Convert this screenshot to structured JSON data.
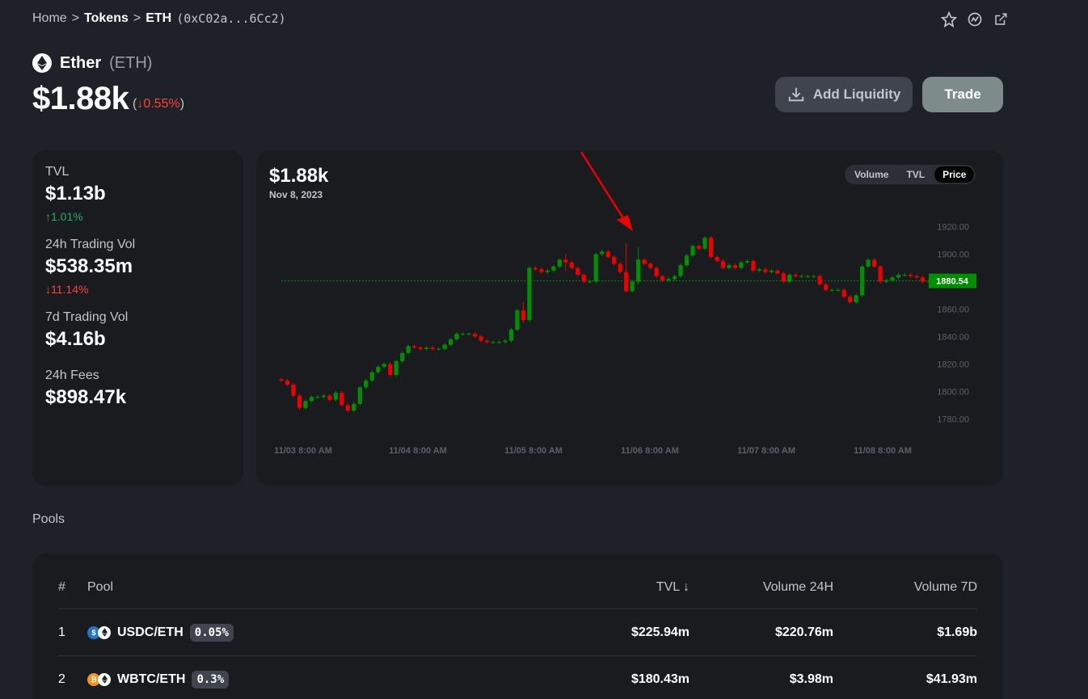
{
  "breadcrumb": {
    "home": "Home",
    "sep1": ">",
    "tokens": "Tokens",
    "sep2": ">",
    "token": "ETH",
    "address": "(0xC02a...6Cc2)"
  },
  "token": {
    "name": "Ether",
    "symbol": "(ETH)",
    "price": "$1.88k",
    "change_open": "(",
    "change_arrow": "↓",
    "change": "0.55%",
    "change_close": ")"
  },
  "actions": {
    "add_liquidity": "Add Liquidity",
    "trade": "Trade"
  },
  "stats": {
    "tvl": {
      "label": "TVL",
      "value": "$1.13b",
      "change": "↑1.01%",
      "direction": "up"
    },
    "vol24": {
      "label": "24h Trading Vol",
      "value": "$538.35m",
      "change": "↓11.14%",
      "direction": "down"
    },
    "vol7": {
      "label": "7d Trading Vol",
      "value": "$4.16b"
    },
    "fees24": {
      "label": "24h Fees",
      "value": "$898.47k"
    }
  },
  "chart_header": {
    "price": "$1.88k",
    "date": "Nov 8, 2023"
  },
  "toggle": {
    "volume": "Volume",
    "tvl": "TVL",
    "price": "Price",
    "active": "price"
  },
  "colors": {
    "up": "#008f00",
    "down": "#ee0000",
    "current_price_tag": "#008f00",
    "arrow": "#ee0000"
  },
  "chart_data": {
    "type": "candlestick",
    "y_ticks": [
      "1920.00",
      "1900.00",
      "1880.00",
      "1860.00",
      "1840.00",
      "1820.00",
      "1800.00",
      "1780.00"
    ],
    "ylim": [
      1772,
      1928
    ],
    "x_ticks": [
      "11/03 8:00 AM",
      "11/04 8:00 AM",
      "11/05 8:00 AM",
      "11/06 8:00 AM",
      "11/07 8:00 AM",
      "11/08 8:00 AM"
    ],
    "current_price": "1880.54",
    "current_price_value": 1880.54,
    "closes": [
      1808,
      1805,
      1797,
      1788,
      1793,
      1796,
      1796,
      1797,
      1794,
      1799,
      1790,
      1786,
      1791,
      1803,
      1808,
      1814,
      1818,
      1820,
      1812,
      1822,
      1828,
      1833,
      1832,
      1831,
      1832,
      1831,
      1831,
      1834,
      1838,
      1842,
      1842,
      1842,
      1840,
      1837,
      1836,
      1836,
      1836,
      1837,
      1845,
      1859,
      1852,
      1890,
      1889,
      1887,
      1888,
      1891,
      1896,
      1894,
      1890,
      1885,
      1880,
      1880,
      1900,
      1902,
      1898,
      1893,
      1887,
      1873,
      1880,
      1896,
      1893,
      1890,
      1884,
      1881,
      1882,
      1884,
      1892,
      1899,
      1906,
      1904,
      1912,
      1898,
      1895,
      1890,
      1892,
      1890,
      1894,
      1895,
      1888,
      1889,
      1887,
      1888,
      1886,
      1880,
      1885,
      1884,
      1884,
      1884,
      1884,
      1878,
      1874,
      1874,
      1874,
      1869,
      1865,
      1870,
      1891,
      1896,
      1891,
      1880,
      1881,
      1883,
      1885,
      1885,
      1884,
      1883,
      1880,
      1880.54
    ],
    "wick_overrides": {
      "40": [
        1850,
        1865
      ],
      "47": [
        1888,
        1900
      ],
      "57": [
        1872,
        1908
      ],
      "59": [
        1878,
        1905
      ]
    }
  },
  "pools": {
    "title": "Pools",
    "headers": {
      "num": "#",
      "pool": "Pool",
      "tvl": "TVL ↓",
      "vol24": "Volume 24H",
      "vol7": "Volume 7D"
    },
    "rows": [
      {
        "num": "1",
        "pair": "USDC/ETH",
        "fee": "0.05%",
        "tvl": "$225.94m",
        "vol24": "$220.76m",
        "vol7": "$1.69b"
      },
      {
        "num": "2",
        "pair": "WBTC/ETH",
        "fee": "0.3%",
        "tvl": "$180.43m",
        "vol24": "$3.98m",
        "vol7": "$41.93m"
      }
    ]
  }
}
